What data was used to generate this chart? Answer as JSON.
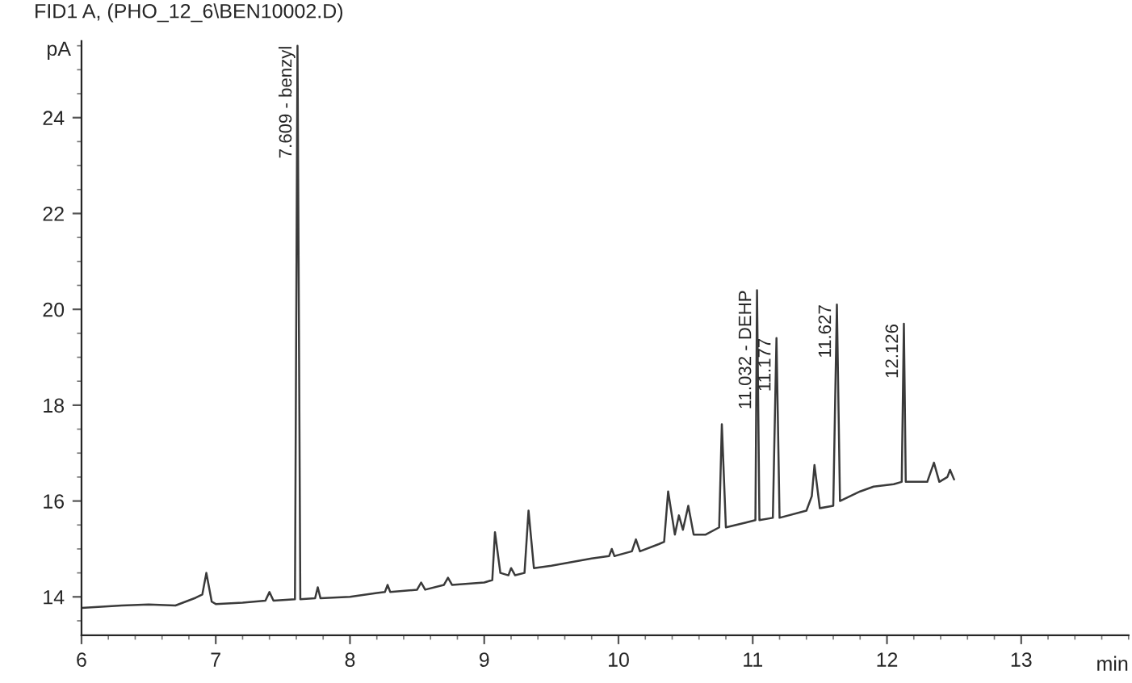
{
  "chart_data": {
    "type": "line",
    "title": "FID1 A, (PHO_12_6\\BEN10002.D)",
    "ylabel": "pA",
    "xlabel": "min",
    "x": [
      6.0,
      6.3,
      6.5,
      6.7,
      6.85,
      6.9,
      6.93,
      6.97,
      7.0,
      7.2,
      7.37,
      7.4,
      7.43,
      7.59,
      7.609,
      7.63,
      7.74,
      7.76,
      7.78,
      8.0,
      8.2,
      8.26,
      8.28,
      8.3,
      8.5,
      8.53,
      8.56,
      8.7,
      8.73,
      8.76,
      9.0,
      9.06,
      9.08,
      9.12,
      9.18,
      9.2,
      9.23,
      9.3,
      9.33,
      9.37,
      9.5,
      9.8,
      9.93,
      9.95,
      9.97,
      10.1,
      10.13,
      10.16,
      10.3,
      10.34,
      10.37,
      10.42,
      10.45,
      10.48,
      10.52,
      10.56,
      10.65,
      10.75,
      10.77,
      10.8,
      10.95,
      11.02,
      11.032,
      11.05,
      11.15,
      11.177,
      11.2,
      11.4,
      11.44,
      11.46,
      11.5,
      11.6,
      11.627,
      11.65,
      11.8,
      11.9,
      12.05,
      12.11,
      12.126,
      12.14,
      12.3,
      12.35,
      12.39,
      12.45,
      12.47,
      12.5
    ],
    "series": [
      {
        "color": "#3a3a3a",
        "values": [
          13.77,
          13.82,
          13.84,
          13.82,
          13.98,
          14.05,
          14.5,
          13.9,
          13.85,
          13.88,
          13.92,
          14.1,
          13.92,
          13.95,
          25.5,
          13.95,
          13.97,
          14.2,
          13.97,
          14.0,
          14.08,
          14.1,
          14.25,
          14.1,
          14.15,
          14.3,
          14.15,
          14.25,
          14.4,
          14.25,
          14.3,
          14.35,
          15.35,
          14.5,
          14.45,
          14.6,
          14.45,
          14.5,
          15.8,
          14.6,
          14.65,
          14.8,
          14.85,
          15.0,
          14.85,
          14.95,
          15.2,
          14.95,
          15.1,
          15.15,
          16.2,
          15.3,
          15.7,
          15.4,
          15.9,
          15.3,
          15.3,
          15.45,
          17.6,
          15.45,
          15.55,
          15.6,
          20.4,
          15.6,
          15.65,
          19.4,
          15.65,
          15.8,
          16.1,
          16.75,
          15.85,
          15.9,
          20.1,
          16.0,
          16.2,
          16.3,
          16.35,
          16.4,
          19.7,
          16.4,
          16.4,
          16.8,
          16.4,
          16.5,
          16.65,
          16.45
        ]
      }
    ],
    "xlim": [
      6,
      13.8
    ],
    "xticks": [
      6,
      7,
      8,
      9,
      10,
      11,
      12,
      13
    ],
    "ylim": [
      13.2,
      25.6
    ],
    "yticks": [
      14,
      16,
      18,
      20,
      22,
      24
    ],
    "grid": false,
    "annotations": [
      {
        "text": "7.609 - benzyl",
        "x": 7.609,
        "y": 25.5
      },
      {
        "text": "11.032 - DEHP",
        "x": 11.032,
        "y": 20.4
      },
      {
        "text": "11.177",
        "x": 11.177,
        "y": 19.4
      },
      {
        "text": "11.627",
        "x": 11.627,
        "y": 20.1
      },
      {
        "text": "12.126",
        "x": 12.126,
        "y": 19.7
      }
    ]
  }
}
